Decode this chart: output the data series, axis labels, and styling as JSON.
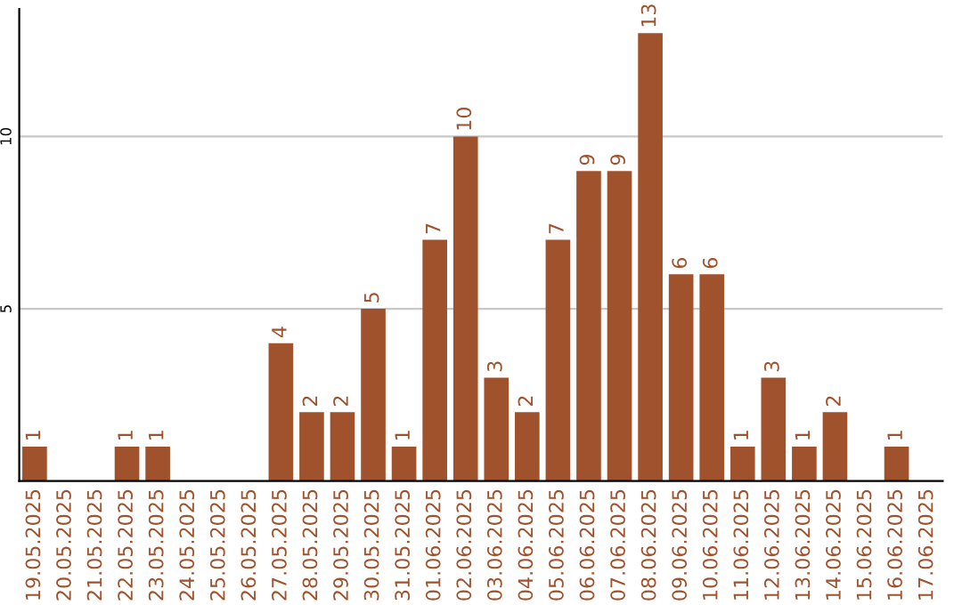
{
  "chart_data": {
    "type": "bar",
    "categories": [
      "19.05.2025",
      "20.05.2025",
      "21.05.2025",
      "22.05.2025",
      "23.05.2025",
      "24.05.2025",
      "25.05.2025",
      "26.05.2025",
      "27.05.2025",
      "28.05.2025",
      "29.05.2025",
      "30.05.2025",
      "31.05.2025",
      "01.06.2025",
      "02.06.2025",
      "03.06.2025",
      "04.06.2025",
      "05.06.2025",
      "06.06.2025",
      "07.06.2025",
      "08.06.2025",
      "09.06.2025",
      "10.06.2025",
      "11.06.2025",
      "12.06.2025",
      "13.06.2025",
      "14.06.2025",
      "15.06.2025",
      "16.06.2025",
      "17.06.2025"
    ],
    "values": [
      1,
      0,
      0,
      1,
      1,
      0,
      0,
      0,
      4,
      2,
      2,
      5,
      1,
      7,
      10,
      3,
      2,
      7,
      9,
      9,
      13,
      6,
      6,
      1,
      3,
      1,
      2,
      0,
      1,
      0
    ],
    "value_labels": [
      "1",
      null,
      null,
      "1",
      "1",
      null,
      null,
      null,
      "4",
      "2",
      "2",
      "5",
      "1",
      "7",
      "10",
      "3",
      "2",
      "7",
      "9",
      "9",
      "13",
      "6",
      "6",
      "1",
      "3",
      "1",
      "2",
      null,
      "1",
      null
    ],
    "color": "#a0522d",
    "ylim": [
      0,
      13.7
    ],
    "yticks": [
      5,
      10
    ],
    "grid": "y",
    "legend": false
  }
}
